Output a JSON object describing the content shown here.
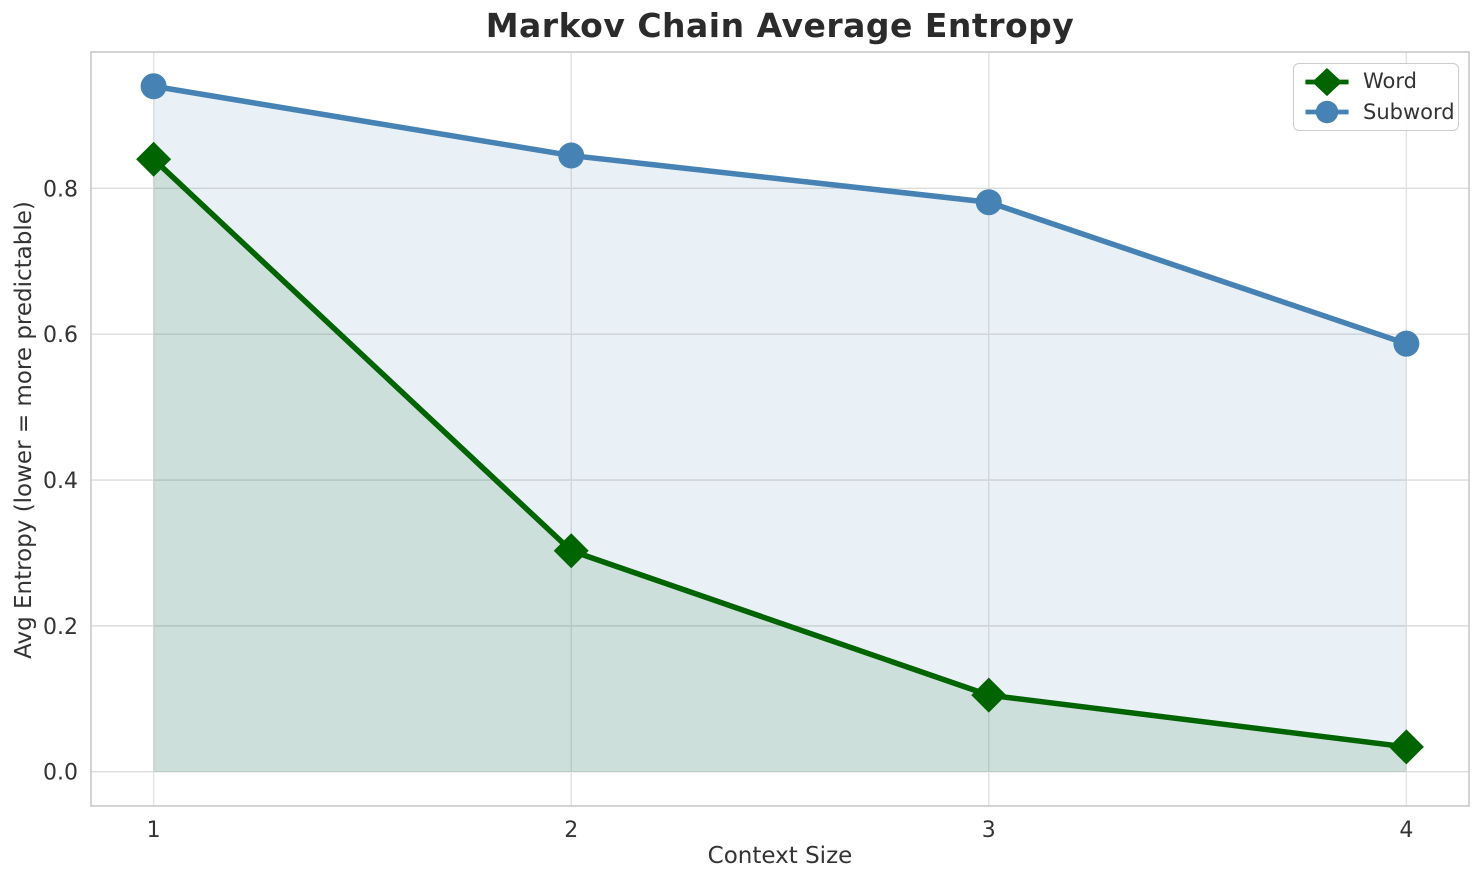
{
  "chart_data": {
    "type": "line",
    "title": "Markov Chain Average Entropy",
    "xlabel": "Context Size",
    "ylabel": "Avg Entropy (lower = more predictable)",
    "x": [
      1,
      2,
      3,
      4
    ],
    "xticks": [
      1,
      2,
      3,
      4
    ],
    "xtick_labels": [
      "1",
      "2",
      "3",
      "4"
    ],
    "yticks": [
      0.0,
      0.2,
      0.4,
      0.6,
      0.8
    ],
    "ytick_labels": [
      "0.0",
      "0.2",
      "0.4",
      "0.6",
      "0.8"
    ],
    "xlim": [
      0.85,
      4.15
    ],
    "ylim": [
      -0.047,
      0.987
    ],
    "grid": true,
    "legend_position": "upper right",
    "fill_to_y": 0,
    "fill_alpha": 0.12,
    "series": [
      {
        "name": "Word",
        "marker": "diamond",
        "color": "#006400",
        "values": [
          0.84,
          0.303,
          0.105,
          0.034
        ]
      },
      {
        "name": "Subword",
        "marker": "circle",
        "color": "#4682b4",
        "values": [
          0.94,
          0.845,
          0.781,
          0.587
        ]
      }
    ]
  }
}
